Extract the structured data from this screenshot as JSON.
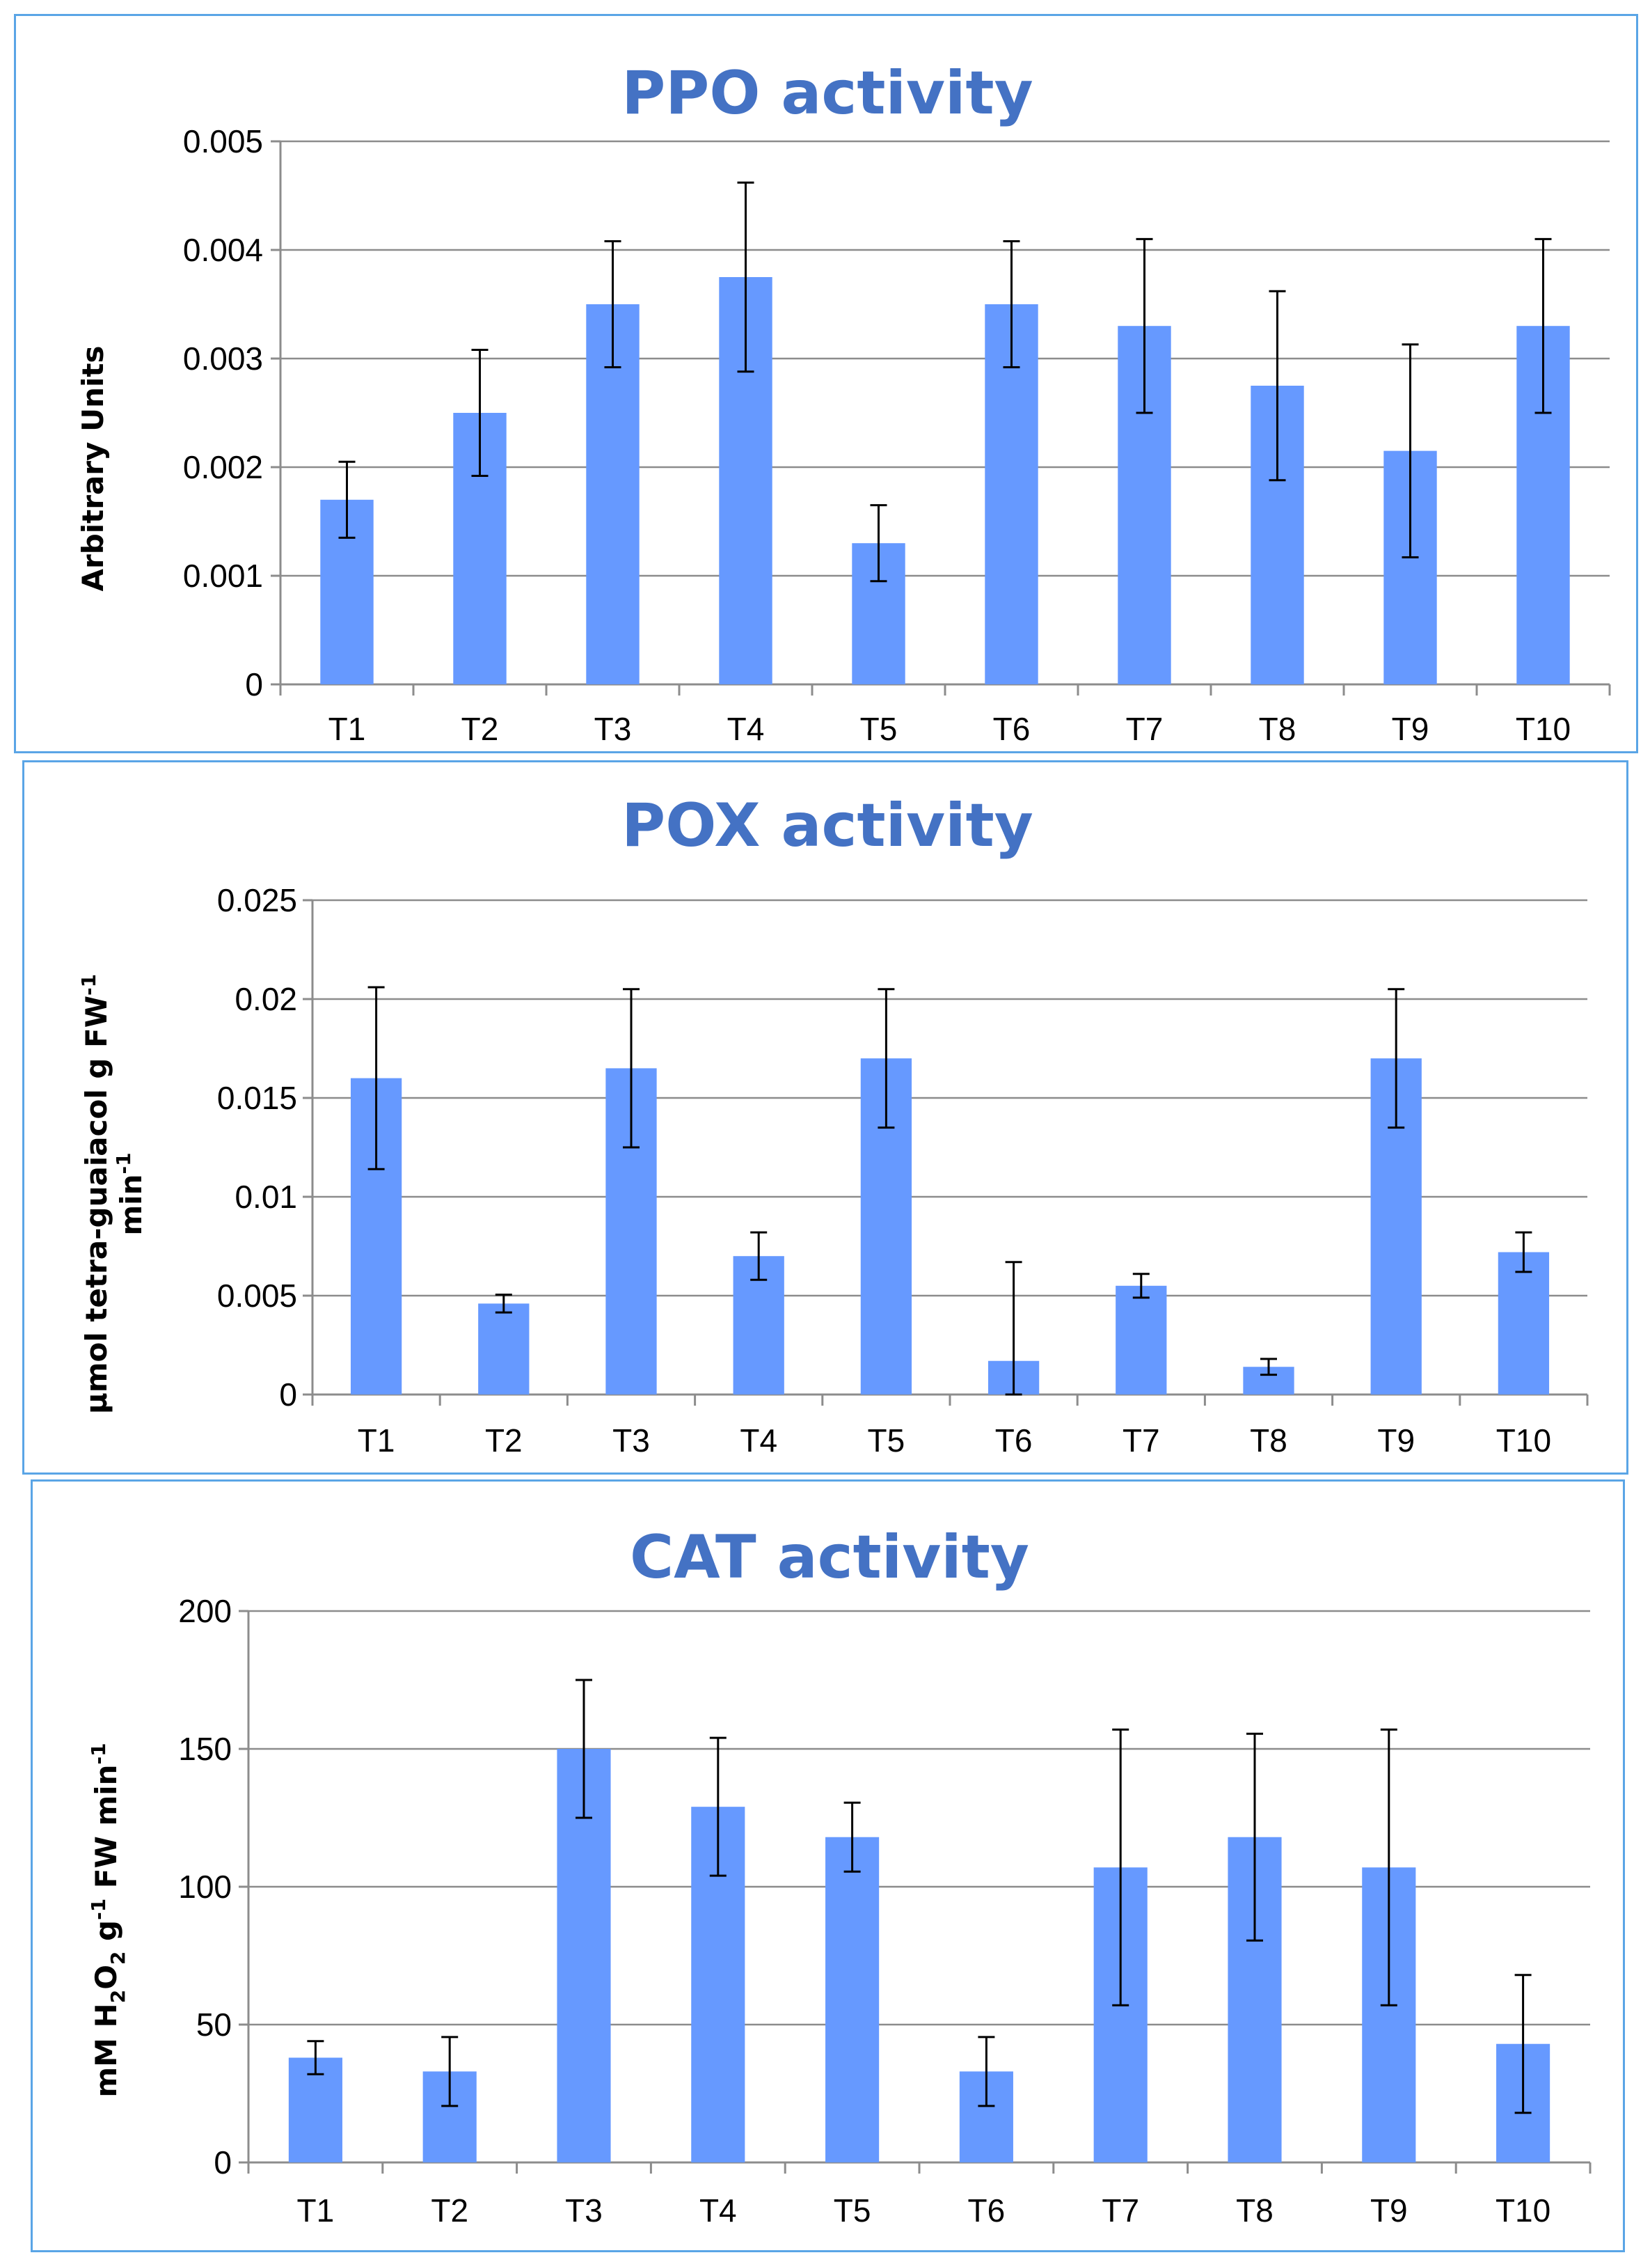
{
  "chart_data": [
    {
      "type": "bar",
      "title": "PPO activity",
      "ylabel": "Arbitrary Units",
      "categories": [
        "T1",
        "T2",
        "T3",
        "T4",
        "T5",
        "T6",
        "T7",
        "T8",
        "T9",
        "T10"
      ],
      "values": [
        0.0017,
        0.0025,
        0.0035,
        0.00375,
        0.0013,
        0.0035,
        0.0033,
        0.00275,
        0.00215,
        0.0033
      ],
      "errors": [
        0.00035,
        0.00058,
        0.00058,
        0.00087,
        0.00035,
        0.00058,
        0.0008,
        0.00087,
        0.00098,
        0.0008
      ],
      "ylim": [
        0,
        0.005
      ],
      "yticks": [
        0,
        0.001,
        0.002,
        0.003,
        0.004,
        0.005
      ],
      "ytick_labels": [
        "0",
        "0.001",
        "0.002",
        "0.003",
        "0.004",
        "0.005"
      ],
      "grid": true,
      "bar_color": "#6699ff"
    },
    {
      "type": "bar",
      "title": "POX activity",
      "ylabel_line1": "µmol tetra-guaiacol  g FW",
      "ylabel_line1_sup": "-1",
      "ylabel_line2": "min",
      "ylabel_line2_sup": "-1",
      "categories": [
        "T1",
        "T2",
        "T3",
        "T4",
        "T5",
        "T6",
        "T7",
        "T8",
        "T9",
        "T10"
      ],
      "values": [
        0.016,
        0.0046,
        0.0165,
        0.007,
        0.017,
        0.0017,
        0.0055,
        0.0014,
        0.017,
        0.0072
      ],
      "errors": [
        0.0046,
        0.00045,
        0.004,
        0.0012,
        0.0035,
        0.005,
        0.0006,
        0.0004,
        0.0035,
        0.001
      ],
      "ylim": [
        0,
        0.025
      ],
      "yticks": [
        0,
        0.005,
        0.01,
        0.015,
        0.02,
        0.025
      ],
      "ytick_labels": [
        "0",
        "0.005",
        "0.01",
        "0.015",
        "0.02",
        "0.025"
      ],
      "grid": true,
      "bar_color": "#6699ff"
    },
    {
      "type": "bar",
      "title": "CAT activity",
      "ylabel_parts": [
        "mM H",
        "2",
        "O",
        "2",
        " g",
        "-1",
        " FW min",
        "-1"
      ],
      "categories": [
        "T1",
        "T2",
        "T3",
        "T4",
        "T5",
        "T6",
        "T7",
        "T8",
        "T9",
        "T10"
      ],
      "values": [
        38,
        33,
        150,
        129,
        118,
        33,
        107,
        118,
        107,
        43
      ],
      "errors": [
        6,
        12.5,
        25,
        25,
        12.5,
        12.5,
        50,
        37.5,
        50,
        25
      ],
      "ylim": [
        0,
        200
      ],
      "yticks": [
        0,
        50,
        100,
        150,
        200
      ],
      "ytick_labels": [
        "0",
        "50",
        "100",
        "150",
        "200"
      ],
      "grid": true,
      "bar_color": "#6699ff"
    }
  ]
}
